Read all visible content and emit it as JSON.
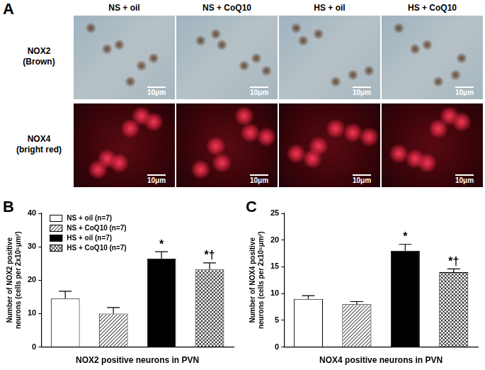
{
  "panel_a": {
    "label": "A",
    "columns": [
      "NS + oil",
      "NS + CoQ10",
      "HS + oil",
      "HS + CoQ10"
    ],
    "rows": [
      [
        "NOX2",
        "(Brown)"
      ],
      [
        "NOX4",
        "(bright red)"
      ]
    ],
    "scale_bar": "10μm"
  },
  "chart_data": [
    {
      "panel": "B",
      "type": "bar",
      "categories": [
        "NS + oil (n=7)",
        "NS + CoQ10 (n=7)",
        "HS + oil (n=7)",
        "HS + CoQ10 (n=7)"
      ],
      "values": [
        14.5,
        10,
        26.5,
        23.2
      ],
      "errors": [
        2.2,
        1.8,
        2.0,
        2.0
      ],
      "annotations": [
        null,
        null,
        "*",
        "*†"
      ],
      "colors": [
        "#ffffff",
        "#ffffff",
        "#000000",
        "#ffffff"
      ],
      "ylabel": [
        "Number of NOX2 positive",
        "neurons (cells per 2x10⁵μm²)"
      ],
      "xlabel": "NOX2 positive neurons in PVN",
      "ylim": [
        0,
        40
      ],
      "yticks": [
        0,
        10,
        20,
        30,
        40
      ],
      "grid": false,
      "legend": "upper left",
      "tick_labels": "y"
    },
    {
      "panel": "C",
      "type": "bar",
      "values": [
        9,
        8,
        18,
        14
      ],
      "errors": [
        0.6,
        0.5,
        1.2,
        0.6
      ],
      "annotations": [
        null,
        null,
        "*",
        "*†"
      ],
      "colors": [
        "#ffffff",
        "#ffffff",
        "#000000",
        "#ffffff"
      ],
      "ylabel": [
        "Number of NOX4 positive",
        "neurons (cells per 2x10⁵μm²)"
      ],
      "xlabel": "NOX4 positive neurons in PVN",
      "ylim": [
        0,
        25
      ],
      "yticks": [
        0,
        5,
        10,
        15,
        20,
        25
      ],
      "grid": false,
      "tick_labels": "y"
    }
  ]
}
